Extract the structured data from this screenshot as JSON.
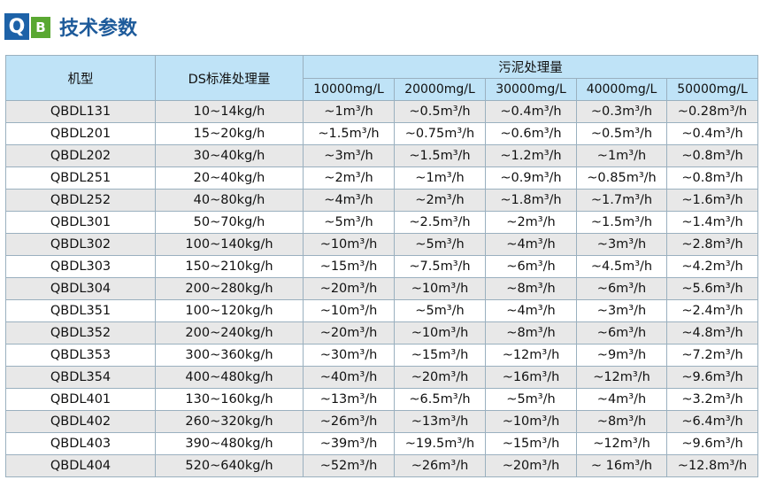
{
  "header": {
    "logo_q": "Q",
    "logo_b": "B",
    "title": "技术参数"
  },
  "table": {
    "col_model": "机型",
    "col_ds": "DS标准处理量",
    "col_group": "污泥处理量",
    "sub_cols": [
      "10000mg/L",
      "20000mg/L",
      "30000mg/L",
      "40000mg/L",
      "50000mg/L"
    ],
    "rows": [
      [
        "QBDL131",
        "10~14kg/h",
        "~1m³/h",
        "~0.5m³/h",
        "~0.4m³/h",
        "~0.3m³/h",
        "~0.28m³/h"
      ],
      [
        "QBDL201",
        "15~20kg/h",
        "~1.5m³/h",
        "~0.75m³/h",
        "~0.6m³/h",
        "~0.5m³/h",
        "~0.4m³/h"
      ],
      [
        "QBDL202",
        "30~40kg/h",
        "~3m³/h",
        "~1.5m³/h",
        "~1.2m³/h",
        "~1m³/h",
        "~0.8m³/h"
      ],
      [
        "QBDL251",
        "20~40kg/h",
        "~2m³/h",
        "~1m³/h",
        "~0.9m³/h",
        "~0.85m³/h",
        "~0.8m³/h"
      ],
      [
        "QBDL252",
        "40~80kg/h",
        "~4m³/h",
        "~2m³/h",
        "~1.8m³/h",
        "~1.7m³/h",
        "~1.6m³/h"
      ],
      [
        "QBDL301",
        "50~70kg/h",
        "~5m³/h",
        "~2.5m³/h",
        "~2m³/h",
        "~1.5m³/h",
        "~1.4m³/h"
      ],
      [
        "QBDL302",
        "100~140kg/h",
        "~10m³/h",
        "~5m³/h",
        "~4m³/h",
        "~3m³/h",
        "~2.8m³/h"
      ],
      [
        "QBDL303",
        "150~210kg/h",
        "~15m³/h",
        "~7.5m³/h",
        "~6m³/h",
        "~4.5m³/h",
        "~4.2m³/h"
      ],
      [
        "QBDL304",
        "200~280kg/h",
        "~20m³/h",
        "~10m³/h",
        "~8m³/h",
        "~6m³/h",
        "~5.6m³/h"
      ],
      [
        "QBDL351",
        "100~120kg/h",
        "~10m³/h",
        "~5m³/h",
        "~4m³/h",
        "~3m³/h",
        "~2.4m³/h"
      ],
      [
        "QBDL352",
        "200~240kg/h",
        "~20m³/h",
        "~10m³/h",
        "~8m³/h",
        "~6m³/h",
        "~4.8m³/h"
      ],
      [
        "QBDL353",
        "300~360kg/h",
        "~30m³/h",
        "~15m³/h",
        "~12m³/h",
        "~9m³/h",
        "~7.2m³/h"
      ],
      [
        "QBDL354",
        "400~480kg/h",
        "~40m³/h",
        "~20m³/h",
        "~16m³/h",
        "~12m³/h",
        "~9.6m³/h"
      ],
      [
        "QBDL401",
        "130~160kg/h",
        "~13m³/h",
        "~6.5m³/h",
        "~5m³/h",
        "~4m³/h",
        "~3.2m³/h"
      ],
      [
        "QBDL402",
        "260~320kg/h",
        "~26m³/h",
        "~13m³/h",
        "~10m³/h",
        "~8m³/h",
        "~6.4m³/h"
      ],
      [
        "QBDL403",
        "390~480kg/h",
        "~39m³/h",
        "~19.5m³/h",
        "~15m³/h",
        "~12m³/h",
        "~9.6m³/h"
      ],
      [
        "QBDL404",
        "520~640kg/h",
        "~52m³/h",
        "~26m³/h",
        "~20m³/h",
        "~ 16m³/h",
        "~12.8m³/h"
      ]
    ]
  }
}
